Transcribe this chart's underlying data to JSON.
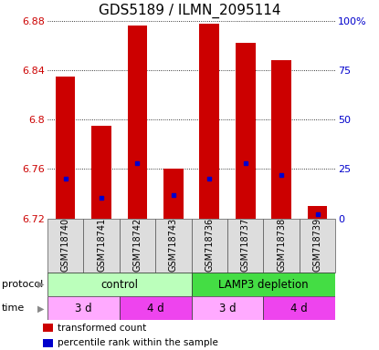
{
  "title": "GDS5189 / ILMN_2095114",
  "samples": [
    "GSM718740",
    "GSM718741",
    "GSM718742",
    "GSM718743",
    "GSM718736",
    "GSM718737",
    "GSM718738",
    "GSM718739"
  ],
  "bar_tops": [
    6.835,
    6.795,
    6.876,
    6.76,
    6.878,
    6.862,
    6.848,
    6.73
  ],
  "bar_bottom": 6.72,
  "percentile_ranks": [
    0.2,
    0.105,
    0.28,
    0.12,
    0.2,
    0.28,
    0.22,
    0.02
  ],
  "ylim": [
    6.72,
    6.88
  ],
  "right_ylim": [
    0,
    100
  ],
  "right_yticks": [
    0,
    25,
    50,
    75,
    100
  ],
  "right_yticklabels": [
    "0",
    "25",
    "50",
    "75",
    "100%"
  ],
  "left_yticks": [
    6.72,
    6.76,
    6.8,
    6.84,
    6.88
  ],
  "bar_color": "#cc0000",
  "dot_color": "#0000cc",
  "grid_color": "#000000",
  "protocol_groups": [
    {
      "label": "control",
      "start": 0,
      "end": 4,
      "color": "#bbffbb"
    },
    {
      "label": "LAMP3 depletion",
      "start": 4,
      "end": 8,
      "color": "#44dd44"
    }
  ],
  "time_groups": [
    {
      "label": "3 d",
      "start": 0,
      "end": 2,
      "color": "#ffaaff"
    },
    {
      "label": "4 d",
      "start": 2,
      "end": 4,
      "color": "#ee44ee"
    },
    {
      "label": "3 d",
      "start": 4,
      "end": 6,
      "color": "#ffaaff"
    },
    {
      "label": "4 d",
      "start": 6,
      "end": 8,
      "color": "#ee44ee"
    }
  ],
  "legend_items": [
    {
      "label": "transformed count",
      "color": "#cc0000"
    },
    {
      "label": "percentile rank within the sample",
      "color": "#0000cc"
    }
  ],
  "left_tick_color": "#cc0000",
  "right_tick_color": "#0000cc",
  "title_fontsize": 11,
  "tick_fontsize": 8,
  "sample_fontsize": 7,
  "bar_width": 0.55
}
